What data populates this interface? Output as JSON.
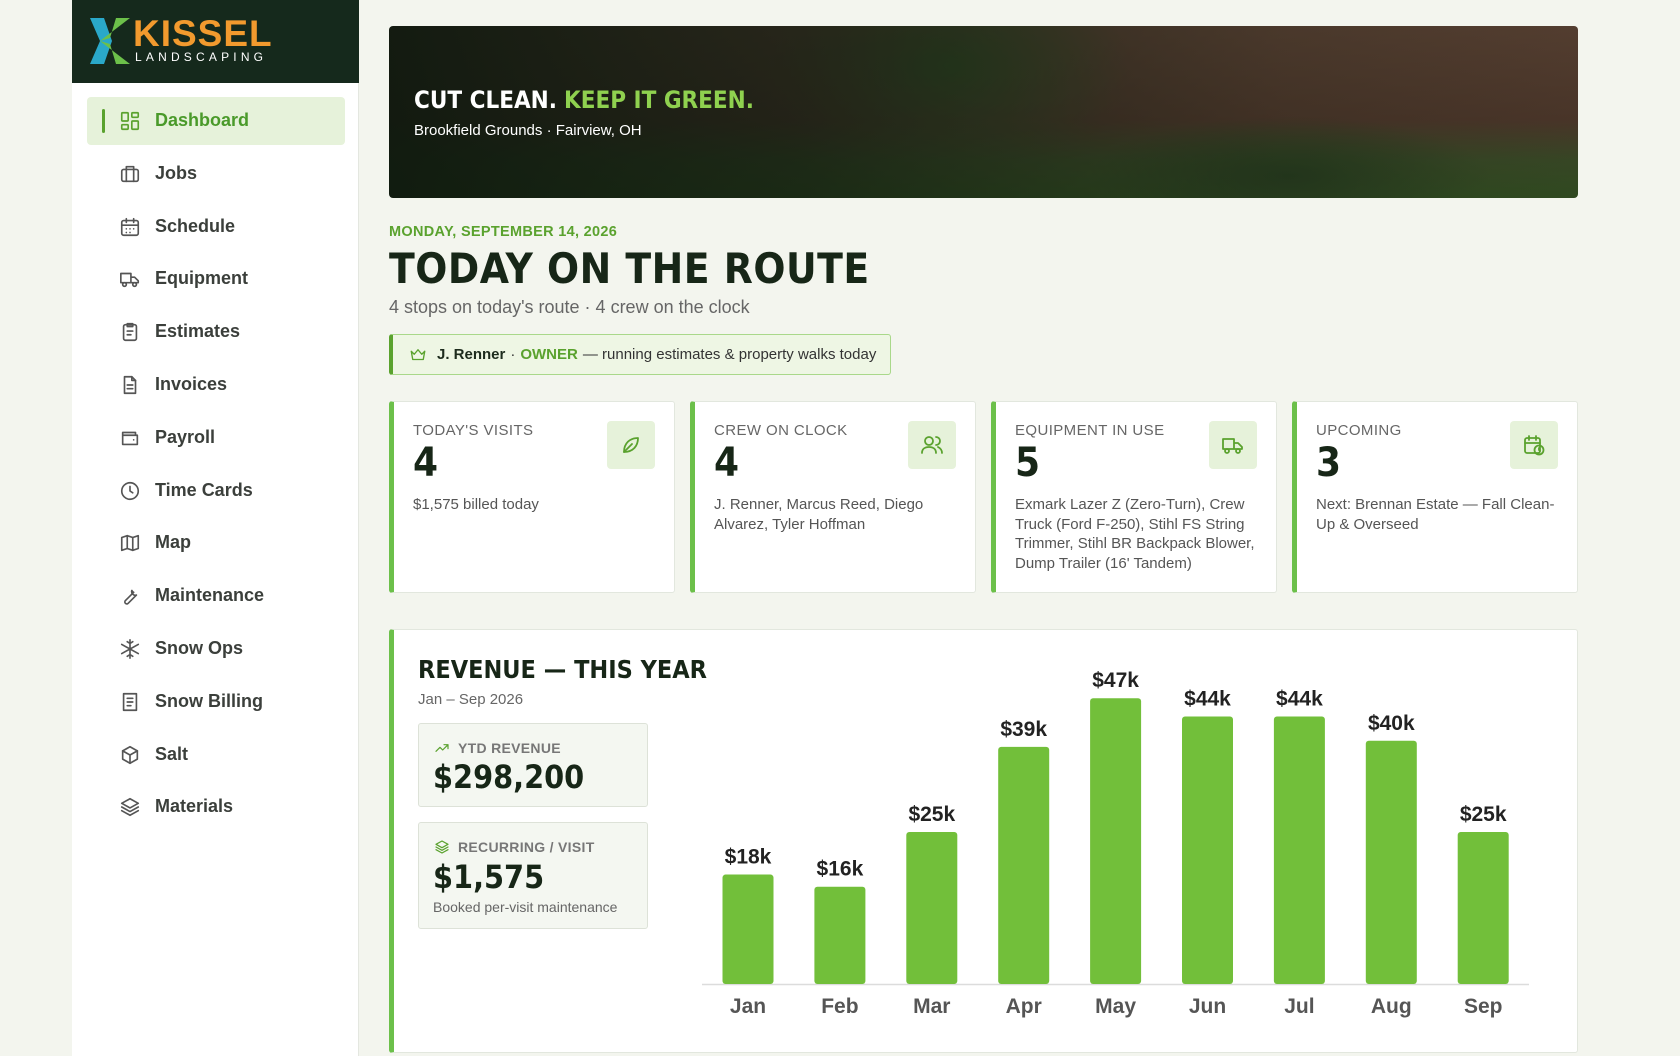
{
  "brand": {
    "name": "KISSEL",
    "tagline": "LANDSCAPING"
  },
  "nav": [
    "Dashboard",
    "Jobs",
    "Schedule",
    "Equipment",
    "Estimates",
    "Invoices",
    "Payroll",
    "Time Cards",
    "Map",
    "Maintenance",
    "Snow Ops",
    "Snow Billing",
    "Salt",
    "Materials"
  ],
  "hero": {
    "headline_a": "CUT CLEAN.",
    "headline_b": "KEEP IT GREEN.",
    "location": "Brookfield Grounds · Fairview, OH"
  },
  "header": {
    "date": "MONDAY, SEPTEMBER 14, 2026",
    "title": "TODAY ON THE ROUTE",
    "subtitle": "4 stops on today's route · 4 crew on the clock"
  },
  "owner": {
    "name": "J. Renner",
    "separator": "·",
    "role": "OWNER",
    "note": "— running estimates & property walks today"
  },
  "stats": [
    {
      "label": "TODAY'S VISITS",
      "value": 4,
      "detail": "$1,575 billed today"
    },
    {
      "label": "CREW ON CLOCK",
      "value": 4,
      "detail": "J. Renner, Marcus Reed, Diego Alvarez, Tyler Hoffman"
    },
    {
      "label": "EQUIPMENT IN USE",
      "value": 5,
      "detail": "Exmark Lazer Z (Zero-Turn), Crew Truck (Ford F-250), Stihl FS String Trimmer, Stihl BR Backpack Blower, Dump Trailer (16' Tandem)"
    },
    {
      "label": "UPCOMING",
      "value": 3,
      "detail": "Next: Brennan Estate — Fall Clean-Up & Overseed"
    }
  ],
  "revenue": {
    "title": "REVENUE — THIS YEAR",
    "subtitle": "Jan – Sep 2026",
    "ytd_label": "YTD REVENUE",
    "ytd_value": "$298,200",
    "recurring_label": "RECURRING / VISIT",
    "recurring_value": "$1,575",
    "recurring_note": "Booked per-visit maintenance"
  },
  "chart_data": {
    "type": "bar",
    "categories": [
      "Jan",
      "Feb",
      "Mar",
      "Apr",
      "May",
      "Jun",
      "Jul",
      "Aug",
      "Sep"
    ],
    "values": [
      18000,
      16000,
      25000,
      39000,
      47000,
      44000,
      44000,
      40000,
      25000
    ],
    "value_labels": [
      "$18k",
      "$16k",
      "$25k",
      "$39k",
      "$47k",
      "$44k",
      "$44k",
      "$40k",
      "$25k"
    ],
    "color": "#72bf3a",
    "ylim": [
      0,
      50000
    ]
  }
}
